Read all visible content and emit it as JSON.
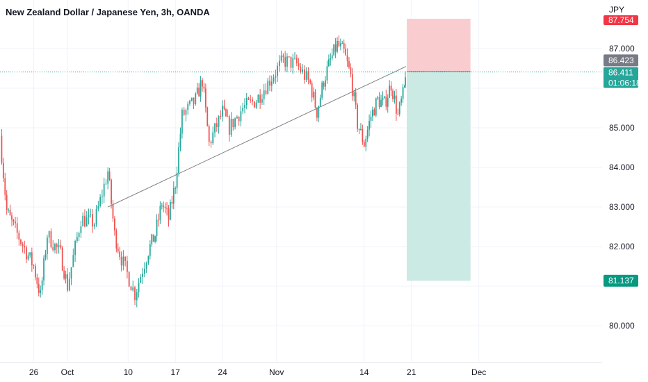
{
  "title": "New Zealand Dollar / Japanese Yen, 3h, OANDA",
  "currency": "JPY",
  "colors": {
    "up": "#26a69a",
    "down": "#ef5350",
    "trendline": "#808080",
    "stop_zone": "#f9cdd0",
    "target_zone": "#cbeae4",
    "last_price_bg": "#26a69a",
    "entry_bg": "#787b86",
    "target_bg": "#089981",
    "stop_bg": "#f23645",
    "grid": "#f0f3fa"
  },
  "y_axis": {
    "ticks": [
      "87.000",
      "85.000",
      "84.000",
      "83.000",
      "82.000",
      "80.000"
    ]
  },
  "x_axis": {
    "ticks": [
      "26",
      "Oct",
      "10",
      "17",
      "24",
      "Nov",
      "14",
      "21",
      "Dec"
    ]
  },
  "price_tags": {
    "stop": "87.754",
    "entry": "86.423",
    "last_price": "86.411",
    "countdown": "01:06:18",
    "target": "81.137"
  },
  "chart_data": {
    "type": "candlestick",
    "symbol": "NZDJPY",
    "interval": "3h",
    "source": "OANDA",
    "ylim": [
      79.3,
      88.2
    ],
    "x_range_days": [
      "Sep 21",
      "Dec 3"
    ],
    "series": [
      {
        "date": "Sep 21",
        "close": 84.8
      },
      {
        "date": "Sep 22",
        "close": 82.9
      },
      {
        "date": "Sep 23",
        "close": 82.5
      },
      {
        "date": "Sep 26",
        "close": 81.5
      },
      {
        "date": "Sep 27",
        "close": 80.75
      },
      {
        "date": "Sep 28",
        "close": 82.3
      },
      {
        "date": "Sep 30",
        "close": 81.8
      },
      {
        "date": "Oct 1",
        "close": 81.0
      },
      {
        "date": "Oct 3",
        "close": 82.7
      },
      {
        "date": "Oct 5",
        "close": 82.6
      },
      {
        "date": "Oct 7",
        "close": 83.9
      },
      {
        "date": "Oct 8",
        "close": 82.3
      },
      {
        "date": "Oct 9",
        "close": 81.7
      },
      {
        "date": "Oct 11",
        "close": 80.8
      },
      {
        "date": "Oct 13",
        "close": 81.9
      },
      {
        "date": "Oct 14",
        "close": 82.3
      },
      {
        "date": "Oct 15",
        "close": 83.1
      },
      {
        "date": "Oct 16",
        "close": 82.7
      },
      {
        "date": "Oct 17",
        "close": 83.6
      },
      {
        "date": "Oct 18",
        "close": 85.3
      },
      {
        "date": "Oct 20",
        "close": 85.7
      },
      {
        "date": "Oct 21",
        "close": 86.2
      },
      {
        "date": "Oct 22",
        "close": 84.6
      },
      {
        "date": "Oct 24",
        "close": 85.4
      },
      {
        "date": "Oct 25",
        "close": 85.0
      },
      {
        "date": "Oct 27",
        "close": 85.5
      },
      {
        "date": "Oct 29",
        "close": 85.7
      },
      {
        "date": "Oct 31",
        "close": 86.2
      },
      {
        "date": "Nov 2",
        "close": 86.7
      },
      {
        "date": "Nov 4",
        "close": 86.6
      },
      {
        "date": "Nov 6",
        "close": 86.1
      },
      {
        "date": "Nov 7",
        "close": 85.4
      },
      {
        "date": "Nov 8",
        "close": 86.2
      },
      {
        "date": "Nov 9",
        "close": 86.7
      },
      {
        "date": "Nov 10",
        "close": 87.1
      },
      {
        "date": "Nov 11",
        "close": 86.9
      },
      {
        "date": "Nov 12",
        "close": 86.3
      },
      {
        "date": "Nov 13",
        "close": 85.1
      },
      {
        "date": "Nov 14",
        "close": 84.6
      },
      {
        "date": "Nov 15",
        "close": 85.3
      },
      {
        "date": "Nov 16",
        "close": 85.7
      },
      {
        "date": "Nov 17",
        "close": 85.6
      },
      {
        "date": "Nov 18",
        "close": 86.1
      },
      {
        "date": "Nov 19",
        "close": 85.3
      },
      {
        "date": "Nov 20",
        "close": 86.0
      },
      {
        "date": "Nov 20 (last)",
        "close": 86.41
      }
    ],
    "trendline": {
      "from": {
        "date": "Oct 7",
        "price": 83.0
      },
      "to": {
        "date": "Nov 20",
        "price": 86.55
      }
    },
    "position": {
      "type": "short",
      "entry": 86.423,
      "stop": 87.754,
      "target": 81.137,
      "start": "Nov 20",
      "end": "Dec 1"
    }
  }
}
